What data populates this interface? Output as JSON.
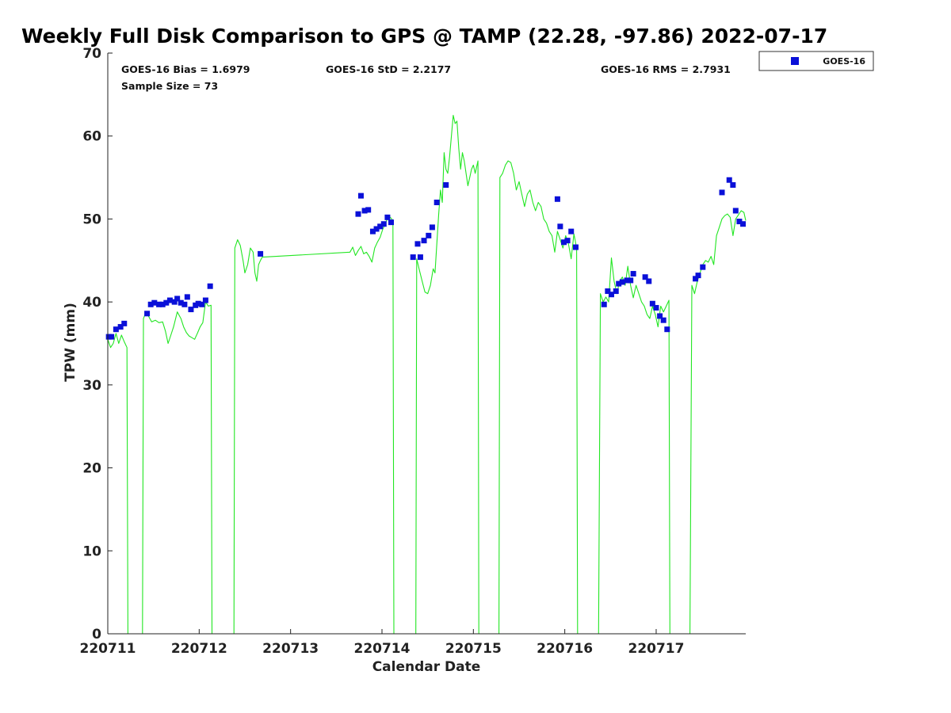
{
  "chart_data": {
    "type": "scatter",
    "title": "Weekly Full Disk Comparison to GPS @ TAMP (22.28, -97.86) 2022-07-17",
    "xlabel": "Calendar Date",
    "ylabel": "TPW (mm)",
    "xlim": [
      0,
      6.98
    ],
    "ylim": [
      0,
      70
    ],
    "yticks": [
      0,
      10,
      20,
      30,
      40,
      50,
      60,
      70
    ],
    "xticks": [
      {
        "value": 0,
        "label": "220711"
      },
      {
        "value": 1,
        "label": "220712"
      },
      {
        "value": 2,
        "label": "220713"
      },
      {
        "value": 3,
        "label": "220714"
      },
      {
        "value": 4,
        "label": "220715"
      },
      {
        "value": 5,
        "label": "220716"
      },
      {
        "value": 6,
        "label": "220717"
      }
    ],
    "grid": false,
    "legend": {
      "position": "top-right",
      "entries": [
        "GOES-16"
      ]
    },
    "stats": {
      "bias": "GOES-16 Bias = 1.6979",
      "std": "GOES-16 StD = 2.2177",
      "rms": "GOES-16 RMS = 2.7931",
      "sample": "Sample Size = 73"
    },
    "colors": {
      "goes": "#0a10d8",
      "gps": "#22e622",
      "axis": "#222222"
    },
    "series": [
      {
        "name": "GOES-16",
        "marker": "square",
        "points": [
          [
            0.01,
            35.8
          ],
          [
            0.04,
            35.8
          ],
          [
            0.09,
            36.7
          ],
          [
            0.14,
            37.0
          ],
          [
            0.18,
            37.4
          ],
          [
            0.43,
            38.6
          ],
          [
            0.47,
            39.7
          ],
          [
            0.51,
            39.9
          ],
          [
            0.56,
            39.7
          ],
          [
            0.6,
            39.7
          ],
          [
            0.64,
            39.9
          ],
          [
            0.68,
            40.2
          ],
          [
            0.73,
            40.0
          ],
          [
            0.76,
            40.4
          ],
          [
            0.8,
            39.9
          ],
          [
            0.84,
            39.7
          ],
          [
            0.87,
            40.6
          ],
          [
            0.91,
            39.1
          ],
          [
            0.96,
            39.6
          ],
          [
            0.99,
            39.8
          ],
          [
            1.03,
            39.7
          ],
          [
            1.07,
            40.2
          ],
          [
            1.12,
            41.9
          ],
          [
            1.67,
            45.8
          ],
          [
            2.74,
            50.6
          ],
          [
            2.77,
            52.8
          ],
          [
            2.81,
            51.0
          ],
          [
            2.85,
            51.1
          ],
          [
            2.9,
            48.5
          ],
          [
            2.94,
            48.8
          ],
          [
            2.98,
            49.1
          ],
          [
            3.02,
            49.4
          ],
          [
            3.06,
            50.2
          ],
          [
            3.1,
            49.6
          ],
          [
            3.34,
            45.4
          ],
          [
            3.39,
            47.0
          ],
          [
            3.42,
            45.4
          ],
          [
            3.46,
            47.4
          ],
          [
            3.51,
            48.0
          ],
          [
            3.55,
            49.0
          ],
          [
            3.6,
            52.0
          ],
          [
            3.7,
            54.1
          ],
          [
            4.92,
            52.4
          ],
          [
            4.95,
            49.1
          ],
          [
            4.99,
            47.2
          ],
          [
            5.03,
            47.4
          ],
          [
            5.07,
            48.5
          ],
          [
            5.12,
            46.6
          ],
          [
            5.43,
            39.7
          ],
          [
            5.47,
            41.3
          ],
          [
            5.51,
            40.9
          ],
          [
            5.56,
            41.3
          ],
          [
            5.59,
            42.2
          ],
          [
            5.63,
            42.4
          ],
          [
            5.68,
            42.6
          ],
          [
            5.72,
            42.6
          ],
          [
            5.75,
            43.4
          ],
          [
            5.88,
            43.0
          ],
          [
            5.92,
            42.5
          ],
          [
            5.96,
            39.8
          ],
          [
            6.0,
            39.3
          ],
          [
            6.04,
            38.3
          ],
          [
            6.08,
            37.8
          ],
          [
            6.12,
            36.7
          ],
          [
            6.43,
            42.8
          ],
          [
            6.46,
            43.2
          ],
          [
            6.51,
            44.2
          ],
          [
            6.72,
            53.2
          ],
          [
            6.8,
            54.7
          ],
          [
            6.84,
            54.1
          ],
          [
            6.87,
            51.0
          ],
          [
            6.91,
            49.7
          ],
          [
            6.95,
            49.4
          ]
        ]
      },
      {
        "name": "GPS",
        "style": "line",
        "points": [
          [
            0.0,
            35.5
          ],
          [
            0.03,
            34.5
          ],
          [
            0.06,
            35.0
          ],
          [
            0.09,
            36.2
          ],
          [
            0.12,
            35.0
          ],
          [
            0.15,
            36.0
          ],
          [
            0.18,
            35.2
          ],
          [
            0.21,
            34.5
          ],
          [
            0.22,
            0
          ],
          [
            0.38,
            0
          ],
          [
            0.39,
            38.0
          ],
          [
            0.42,
            38.8
          ],
          [
            0.45,
            38.2
          ],
          [
            0.48,
            37.6
          ],
          [
            0.52,
            37.8
          ],
          [
            0.56,
            37.5
          ],
          [
            0.6,
            37.6
          ],
          [
            0.63,
            36.5
          ],
          [
            0.66,
            35.0
          ],
          [
            0.69,
            36.0
          ],
          [
            0.72,
            37.0
          ],
          [
            0.76,
            38.8
          ],
          [
            0.8,
            38.0
          ],
          [
            0.83,
            37.0
          ],
          [
            0.86,
            36.3
          ],
          [
            0.89,
            35.9
          ],
          [
            0.92,
            35.7
          ],
          [
            0.95,
            35.5
          ],
          [
            0.98,
            36.2
          ],
          [
            1.01,
            37.0
          ],
          [
            1.04,
            37.5
          ],
          [
            1.07,
            40.0
          ],
          [
            1.1,
            39.5
          ],
          [
            1.13,
            39.6
          ],
          [
            1.14,
            0
          ],
          [
            1.38,
            0
          ],
          [
            1.39,
            46.5
          ],
          [
            1.42,
            47.5
          ],
          [
            1.45,
            46.8
          ],
          [
            1.48,
            45.0
          ],
          [
            1.5,
            43.5
          ],
          [
            1.53,
            44.5
          ],
          [
            1.56,
            46.5
          ],
          [
            1.59,
            46.0
          ],
          [
            1.61,
            43.5
          ],
          [
            1.63,
            42.5
          ],
          [
            1.65,
            44.5
          ],
          [
            1.67,
            45.0
          ],
          [
            1.69,
            45.4
          ],
          [
            2.65,
            46.0
          ],
          [
            2.68,
            46.6
          ],
          [
            2.71,
            45.6
          ],
          [
            2.74,
            46.2
          ],
          [
            2.77,
            46.7
          ],
          [
            2.8,
            45.8
          ],
          [
            2.83,
            46.0
          ],
          [
            2.86,
            45.5
          ],
          [
            2.89,
            44.8
          ],
          [
            2.92,
            46.5
          ],
          [
            2.95,
            47.2
          ],
          [
            2.98,
            47.8
          ],
          [
            3.01,
            48.8
          ],
          [
            3.04,
            49.5
          ],
          [
            3.07,
            50.4
          ],
          [
            3.1,
            50.1
          ],
          [
            3.12,
            49.8
          ],
          [
            3.13,
            0
          ],
          [
            3.37,
            0
          ],
          [
            3.38,
            45.2
          ],
          [
            3.41,
            43.8
          ],
          [
            3.44,
            42.5
          ],
          [
            3.47,
            41.2
          ],
          [
            3.5,
            41.0
          ],
          [
            3.53,
            42.0
          ],
          [
            3.56,
            44.0
          ],
          [
            3.58,
            43.5
          ],
          [
            3.6,
            47.0
          ],
          [
            3.62,
            50.5
          ],
          [
            3.64,
            53.5
          ],
          [
            3.66,
            52.0
          ],
          [
            3.68,
            58.0
          ],
          [
            3.7,
            56.0
          ],
          [
            3.72,
            55.5
          ],
          [
            3.74,
            57.5
          ],
          [
            3.76,
            60.0
          ],
          [
            3.78,
            62.5
          ],
          [
            3.8,
            61.5
          ],
          [
            3.82,
            61.8
          ],
          [
            3.84,
            58.5
          ],
          [
            3.86,
            56.0
          ],
          [
            3.88,
            58.0
          ],
          [
            3.9,
            57.0
          ],
          [
            3.92,
            55.5
          ],
          [
            3.94,
            54.0
          ],
          [
            3.96,
            55.0
          ],
          [
            3.98,
            56.0
          ],
          [
            4.0,
            56.5
          ],
          [
            4.02,
            55.5
          ],
          [
            4.05,
            57.0
          ],
          [
            4.06,
            0
          ],
          [
            4.28,
            0
          ],
          [
            4.29,
            55.0
          ],
          [
            4.32,
            55.5
          ],
          [
            4.35,
            56.5
          ],
          [
            4.38,
            57.0
          ],
          [
            4.41,
            56.8
          ],
          [
            4.44,
            55.5
          ],
          [
            4.47,
            53.5
          ],
          [
            4.5,
            54.5
          ],
          [
            4.53,
            53.0
          ],
          [
            4.56,
            51.5
          ],
          [
            4.59,
            53.0
          ],
          [
            4.62,
            53.5
          ],
          [
            4.65,
            52.0
          ],
          [
            4.68,
            51.0
          ],
          [
            4.71,
            52.0
          ],
          [
            4.74,
            51.5
          ],
          [
            4.77,
            50.0
          ],
          [
            4.8,
            49.5
          ],
          [
            4.83,
            48.5
          ],
          [
            4.86,
            48.0
          ],
          [
            4.89,
            46.0
          ],
          [
            4.92,
            48.5
          ],
          [
            4.95,
            47.5
          ],
          [
            4.98,
            46.5
          ],
          [
            5.01,
            48.0
          ],
          [
            5.04,
            47.0
          ],
          [
            5.07,
            45.2
          ],
          [
            5.1,
            48.2
          ],
          [
            5.13,
            46.5
          ],
          [
            5.14,
            0
          ],
          [
            5.37,
            0
          ],
          [
            5.39,
            41.0
          ],
          [
            5.42,
            40.0
          ],
          [
            5.45,
            40.6
          ],
          [
            5.48,
            40.0
          ],
          [
            5.51,
            45.3
          ],
          [
            5.54,
            42.5
          ],
          [
            5.57,
            41.0
          ],
          [
            5.6,
            42.5
          ],
          [
            5.63,
            43.0
          ],
          [
            5.66,
            42.0
          ],
          [
            5.69,
            44.3
          ],
          [
            5.72,
            42.0
          ],
          [
            5.75,
            40.5
          ],
          [
            5.78,
            42.0
          ],
          [
            5.81,
            41.0
          ],
          [
            5.84,
            40.0
          ],
          [
            5.87,
            39.5
          ],
          [
            5.9,
            38.5
          ],
          [
            5.93,
            38.0
          ],
          [
            5.96,
            39.5
          ],
          [
            5.99,
            38.5
          ],
          [
            6.02,
            37.0
          ],
          [
            6.05,
            39.5
          ],
          [
            6.08,
            38.8
          ],
          [
            6.11,
            39.5
          ],
          [
            6.14,
            40.2
          ],
          [
            6.15,
            0
          ],
          [
            6.37,
            0
          ],
          [
            6.39,
            42.0
          ],
          [
            6.42,
            41.0
          ],
          [
            6.45,
            42.5
          ],
          [
            6.48,
            43.5
          ],
          [
            6.51,
            44.5
          ],
          [
            6.54,
            45.0
          ],
          [
            6.57,
            44.8
          ],
          [
            6.6,
            45.5
          ],
          [
            6.63,
            44.5
          ],
          [
            6.66,
            48.0
          ],
          [
            6.69,
            49.0
          ],
          [
            6.72,
            50.0
          ],
          [
            6.75,
            50.4
          ],
          [
            6.78,
            50.6
          ],
          [
            6.81,
            50.2
          ],
          [
            6.84,
            48.0
          ],
          [
            6.87,
            50.0
          ],
          [
            6.9,
            50.5
          ],
          [
            6.93,
            51.0
          ],
          [
            6.96,
            50.8
          ],
          [
            6.98,
            49.8
          ]
        ]
      }
    ]
  }
}
